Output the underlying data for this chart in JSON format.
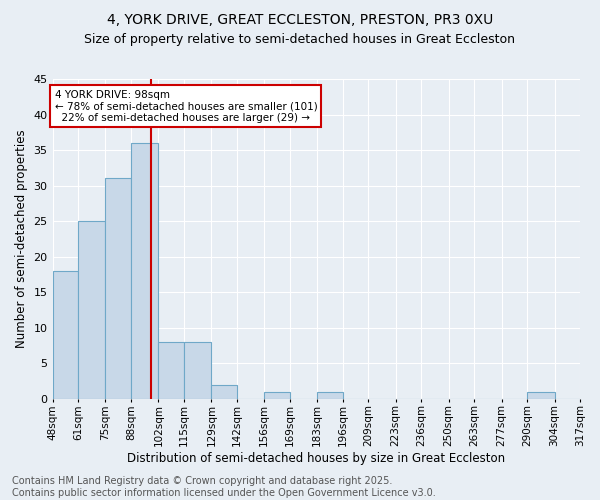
{
  "title1": "4, YORK DRIVE, GREAT ECCLESTON, PRESTON, PR3 0XU",
  "title2": "Size of property relative to semi-detached houses in Great Eccleston",
  "xlabel": "Distribution of semi-detached houses by size in Great Eccleston",
  "ylabel": "Number of semi-detached properties",
  "footnote": "Contains HM Land Registry data © Crown copyright and database right 2025.\nContains public sector information licensed under the Open Government Licence v3.0.",
  "bins": [
    48,
    61,
    75,
    88,
    102,
    115,
    129,
    142,
    156,
    169,
    183,
    196,
    209,
    223,
    236,
    250,
    263,
    277,
    290,
    304,
    317
  ],
  "bin_labels": [
    "48sqm",
    "61sqm",
    "75sqm",
    "88sqm",
    "102sqm",
    "115sqm",
    "129sqm",
    "142sqm",
    "156sqm",
    "169sqm",
    "183sqm",
    "196sqm",
    "209sqm",
    "223sqm",
    "236sqm",
    "250sqm",
    "263sqm",
    "277sqm",
    "290sqm",
    "304sqm",
    "317sqm"
  ],
  "values": [
    18,
    25,
    31,
    36,
    8,
    8,
    2,
    0,
    1,
    0,
    1,
    0,
    0,
    0,
    0,
    0,
    0,
    0,
    1,
    0
  ],
  "bar_color": "#c8d8e8",
  "bar_edge_color": "#6fa8c8",
  "property_value": 98,
  "property_line_color": "#cc0000",
  "annotation_text": "4 YORK DRIVE: 98sqm\n← 78% of semi-detached houses are smaller (101)\n  22% of semi-detached houses are larger (29) →",
  "annotation_box_color": "#ffffff",
  "annotation_box_edge": "#cc0000",
  "ylim": [
    0,
    45
  ],
  "background_color": "#e8eef4",
  "plot_bg_color": "#e8eef4",
  "grid_color": "#ffffff",
  "title1_fontsize": 10,
  "title2_fontsize": 9,
  "xlabel_fontsize": 8.5,
  "ylabel_fontsize": 8.5,
  "footnote_fontsize": 7
}
